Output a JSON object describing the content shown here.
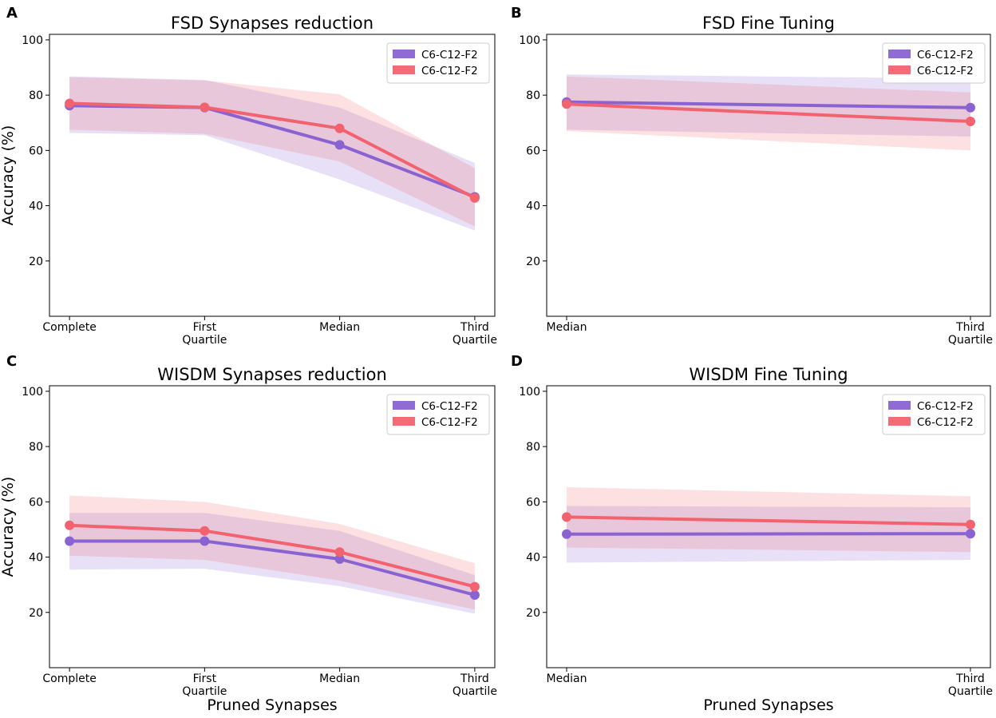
{
  "chart_data": [
    {
      "panel": "A",
      "type": "line",
      "title": "FSD Synapses reduction",
      "xlabel": "",
      "ylabel": "Accuracy (%)",
      "categories": [
        [
          "Complete"
        ],
        [
          "First",
          "Quartile"
        ],
        [
          "Median"
        ],
        [
          "Third",
          "Quartile"
        ]
      ],
      "ylim": [
        0,
        102
      ],
      "yticks": [
        20,
        40,
        60,
        80,
        100
      ],
      "legend": "top-right",
      "series": [
        {
          "name": "C6-C12-F2",
          "color": "#8a63d2",
          "values": [
            76.2,
            75.5,
            62.0,
            43.2
          ],
          "lower": [
            66.3,
            65.5,
            49.5,
            31.0
          ],
          "upper": [
            86.8,
            85.5,
            75.5,
            55.5
          ]
        },
        {
          "name": "C6-C12-F2",
          "color": "#f2636f",
          "values": [
            77.0,
            75.6,
            68.0,
            42.8
          ],
          "lower": [
            67.5,
            66.0,
            56.0,
            32.5
          ],
          "upper": [
            86.5,
            85.3,
            80.3,
            53.5
          ]
        }
      ]
    },
    {
      "panel": "B",
      "type": "line",
      "title": "FSD Fine Tuning",
      "xlabel": "",
      "ylabel": "",
      "categories": [
        [
          "Median"
        ],
        [
          "Third",
          "Quartile"
        ]
      ],
      "ylim": [
        0,
        102
      ],
      "yticks": [
        20,
        40,
        60,
        80,
        100
      ],
      "legend": "top-right",
      "series": [
        {
          "name": "C6-C12-F2",
          "color": "#8a63d2",
          "values": [
            77.5,
            75.5
          ],
          "lower": [
            67.5,
            65.0
          ],
          "upper": [
            87.5,
            86.0
          ]
        },
        {
          "name": "C6-C12-F2",
          "color": "#f2636f",
          "values": [
            76.8,
            70.5
          ],
          "lower": [
            67.0,
            60.0
          ],
          "upper": [
            86.8,
            81.0
          ]
        }
      ]
    },
    {
      "panel": "C",
      "type": "line",
      "title": "WISDM Synapses reduction",
      "xlabel": "Pruned Synapses",
      "ylabel": "Accuracy (%)",
      "categories": [
        [
          "Complete"
        ],
        [
          "First",
          "Quartile"
        ],
        [
          "Median"
        ],
        [
          "Third",
          "Quartile"
        ]
      ],
      "ylim": [
        0,
        102
      ],
      "yticks": [
        20,
        40,
        60,
        80,
        100
      ],
      "legend": "top-right",
      "series": [
        {
          "name": "C6-C12-F2",
          "color": "#8a63d2",
          "values": [
            45.8,
            45.8,
            39.3,
            26.3
          ],
          "lower": [
            35.5,
            35.8,
            29.5,
            19.5
          ],
          "upper": [
            56.0,
            56.0,
            49.5,
            33.5
          ]
        },
        {
          "name": "C6-C12-F2",
          "color": "#f2636f",
          "values": [
            51.5,
            49.5,
            41.8,
            29.3
          ],
          "lower": [
            40.5,
            39.0,
            31.5,
            21.0
          ],
          "upper": [
            62.3,
            60.0,
            52.0,
            37.8
          ]
        }
      ]
    },
    {
      "panel": "D",
      "type": "line",
      "title": "WISDM Fine Tuning",
      "xlabel": "Pruned Synapses",
      "ylabel": "",
      "categories": [
        [
          "Median"
        ],
        [
          "Third",
          "Quartile"
        ]
      ],
      "ylim": [
        0,
        102
      ],
      "yticks": [
        20,
        40,
        60,
        80,
        100
      ],
      "legend": "top-right",
      "series": [
        {
          "name": "C6-C12-F2",
          "color": "#8a63d2",
          "values": [
            48.3,
            48.5
          ],
          "lower": [
            38.0,
            39.0
          ],
          "upper": [
            58.5,
            58.0
          ]
        },
        {
          "name": "C6-C12-F2",
          "color": "#f2636f",
          "values": [
            54.5,
            51.8
          ],
          "lower": [
            43.5,
            41.8
          ],
          "upper": [
            65.3,
            62.0
          ]
        }
      ]
    }
  ]
}
